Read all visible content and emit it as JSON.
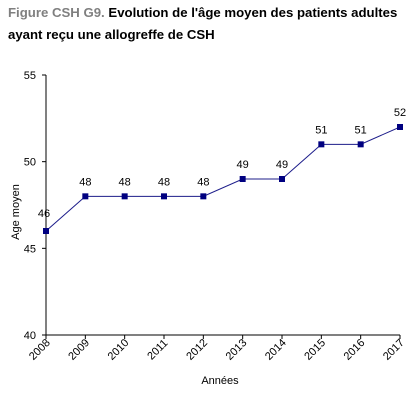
{
  "title_prefix": "Figure CSH G9.",
  "title_main": "Evolution de l'âge moyen des patients adultes ayant reçu une allogreffe de CSH",
  "chart_data": {
    "type": "line",
    "x": [
      "2008",
      "2009",
      "2010",
      "2011",
      "2012",
      "2013",
      "2014",
      "2015",
      "2016",
      "2017"
    ],
    "series": [
      {
        "values": [
          46,
          48,
          48,
          48,
          48,
          49,
          49,
          51,
          51,
          52
        ]
      }
    ],
    "xlabel": "Années",
    "ylabel": "Age moyen",
    "ylim": [
      40,
      55
    ],
    "yticks": [
      40,
      45,
      50,
      55
    ],
    "line_color": "#1c1c8a",
    "marker_color": "#000080",
    "grid": false,
    "legend": "none"
  }
}
